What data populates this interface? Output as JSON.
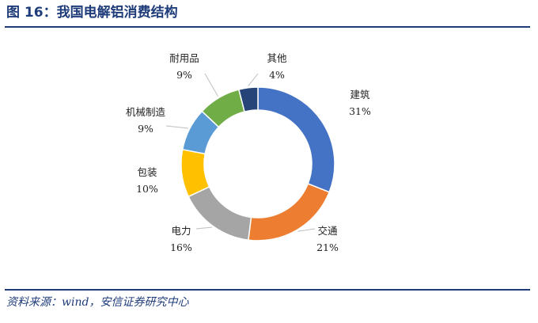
{
  "header": {
    "title": "图 16：我国电解铝消费结构"
  },
  "footer": {
    "source": "资料来源：wind，安信证券研究中心"
  },
  "chart_data": {
    "type": "pie",
    "variant": "donut",
    "title": "",
    "slices": [
      {
        "label": "建筑",
        "value": 31,
        "display": "31%",
        "color": "#4472C4"
      },
      {
        "label": "交通",
        "value": 21,
        "display": "21%",
        "color": "#ED7D31"
      },
      {
        "label": "电力",
        "value": 16,
        "display": "16%",
        "color": "#A5A5A5"
      },
      {
        "label": "包装",
        "value": 10,
        "display": "10%",
        "color": "#FFC000"
      },
      {
        "label": "机械制造",
        "value": 9,
        "display": "9%",
        "color": "#5B9BD5"
      },
      {
        "label": "耐用品",
        "value": 9,
        "display": "9%",
        "color": "#70AD47"
      },
      {
        "label": "其他",
        "value": 4,
        "display": "4%",
        "color": "#264478"
      }
    ],
    "legend": "none",
    "data_labels": "outside with leader lines"
  }
}
